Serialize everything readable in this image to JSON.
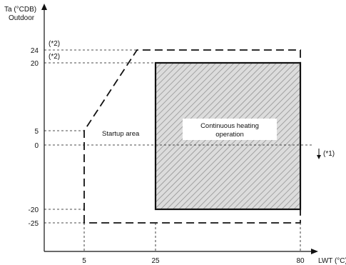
{
  "chart_data": {
    "type": "area",
    "ylabel": "Ta (°CDB)",
    "ylabel_sub": "Outdoor",
    "xlabel": "LWT (°C)",
    "x_ticks": [
      5,
      25,
      80
    ],
    "y_ticks": [
      24,
      20,
      5,
      0,
      -20,
      -25
    ],
    "regions": [
      {
        "name": "Startup area",
        "outline": "dashed",
        "polygon": [
          [
            5,
            -25
          ],
          [
            5,
            5
          ],
          [
            19,
            24
          ],
          [
            80,
            24
          ],
          [
            80,
            -25
          ]
        ]
      },
      {
        "name": "Continuous heating operation",
        "fill": "light hatch",
        "xrange": [
          25,
          80
        ],
        "yrange": [
          -20,
          20
        ]
      },
      {
        "fill": "dense hatch",
        "xrange": [
          5,
          80
        ],
        "yrange": [
          -25,
          -20
        ]
      }
    ],
    "annotations": [
      {
        "text": "(*2)",
        "y": 24
      },
      {
        "text": "(*2)",
        "y": 20
      },
      {
        "text": "(*1)",
        "y": 0,
        "direction": "down-arrow"
      }
    ],
    "label_startup": "Startup area",
    "label_continuous_1": "Continuous heating",
    "label_continuous_2": "operation"
  }
}
